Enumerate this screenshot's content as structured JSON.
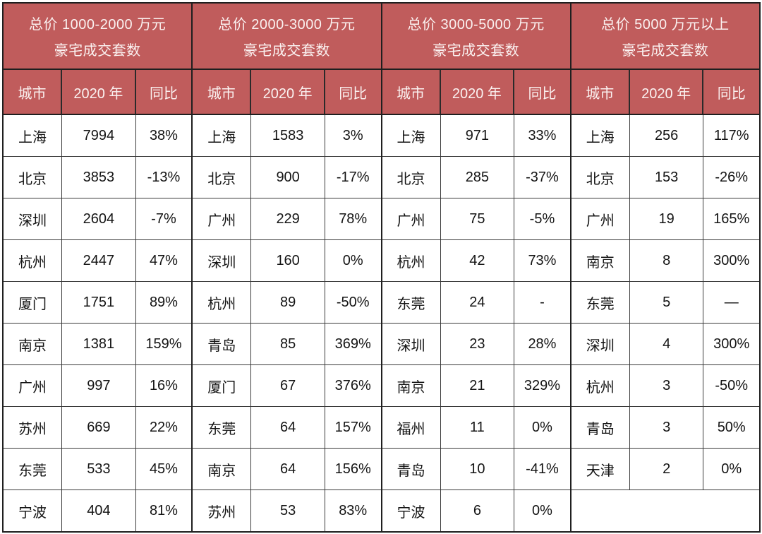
{
  "chart_data": {
    "type": "table",
    "pad_to_rows": 10,
    "tables": [
      {
        "title_line1": "总价 1000-2000 万元",
        "title_line2": "豪宅成交套数",
        "columns": [
          "城市",
          "2020 年",
          "同比"
        ],
        "rows": [
          [
            "上海",
            "7994",
            "38%"
          ],
          [
            "北京",
            "3853",
            "-13%"
          ],
          [
            "深圳",
            "2604",
            "-7%"
          ],
          [
            "杭州",
            "2447",
            "47%"
          ],
          [
            "厦门",
            "1751",
            "89%"
          ],
          [
            "南京",
            "1381",
            "159%"
          ],
          [
            "广州",
            "997",
            "16%"
          ],
          [
            "苏州",
            "669",
            "22%"
          ],
          [
            "东莞",
            "533",
            "45%"
          ],
          [
            "宁波",
            "404",
            "81%"
          ]
        ]
      },
      {
        "title_line1": "总价 2000-3000 万元",
        "title_line2": "豪宅成交套数",
        "columns": [
          "城市",
          "2020 年",
          "同比"
        ],
        "rows": [
          [
            "上海",
            "1583",
            "3%"
          ],
          [
            "北京",
            "900",
            "-17%"
          ],
          [
            "广州",
            "229",
            "78%"
          ],
          [
            "深圳",
            "160",
            "0%"
          ],
          [
            "杭州",
            "89",
            "-50%"
          ],
          [
            "青岛",
            "85",
            "369%"
          ],
          [
            "厦门",
            "67",
            "376%"
          ],
          [
            "东莞",
            "64",
            "157%"
          ],
          [
            "南京",
            "64",
            "156%"
          ],
          [
            "苏州",
            "53",
            "83%"
          ]
        ]
      },
      {
        "title_line1": "总价 3000-5000 万元",
        "title_line2": "豪宅成交套数",
        "columns": [
          "城市",
          "2020 年",
          "同比"
        ],
        "rows": [
          [
            "上海",
            "971",
            "33%"
          ],
          [
            "北京",
            "285",
            "-37%"
          ],
          [
            "广州",
            "75",
            "-5%"
          ],
          [
            "杭州",
            "42",
            "73%"
          ],
          [
            "东莞",
            "24",
            "-"
          ],
          [
            "深圳",
            "23",
            "28%"
          ],
          [
            "南京",
            "21",
            "329%"
          ],
          [
            "福州",
            "11",
            "0%"
          ],
          [
            "青岛",
            "10",
            "-41%"
          ],
          [
            "宁波",
            "6",
            "0%"
          ]
        ]
      },
      {
        "title_line1": "总价 5000 万元以上",
        "title_line2": "豪宅成交套数",
        "columns": [
          "城市",
          "2020 年",
          "同比"
        ],
        "rows": [
          [
            "上海",
            "256",
            "117%"
          ],
          [
            "北京",
            "153",
            "-26%"
          ],
          [
            "广州",
            "19",
            "165%"
          ],
          [
            "南京",
            "8",
            "300%"
          ],
          [
            "东莞",
            "5",
            "—"
          ],
          [
            "深圳",
            "4",
            "300%"
          ],
          [
            "杭州",
            "3",
            "-50%"
          ],
          [
            "青岛",
            "3",
            "50%"
          ],
          [
            "天津",
            "2",
            "0%"
          ]
        ]
      }
    ]
  },
  "colors": {
    "header_bg": "#c05c5c",
    "header_text": "#fbf2f1",
    "outer_border": "#1f1f1f",
    "inner_border": "#3a3a3a",
    "data_text": "#141414"
  }
}
